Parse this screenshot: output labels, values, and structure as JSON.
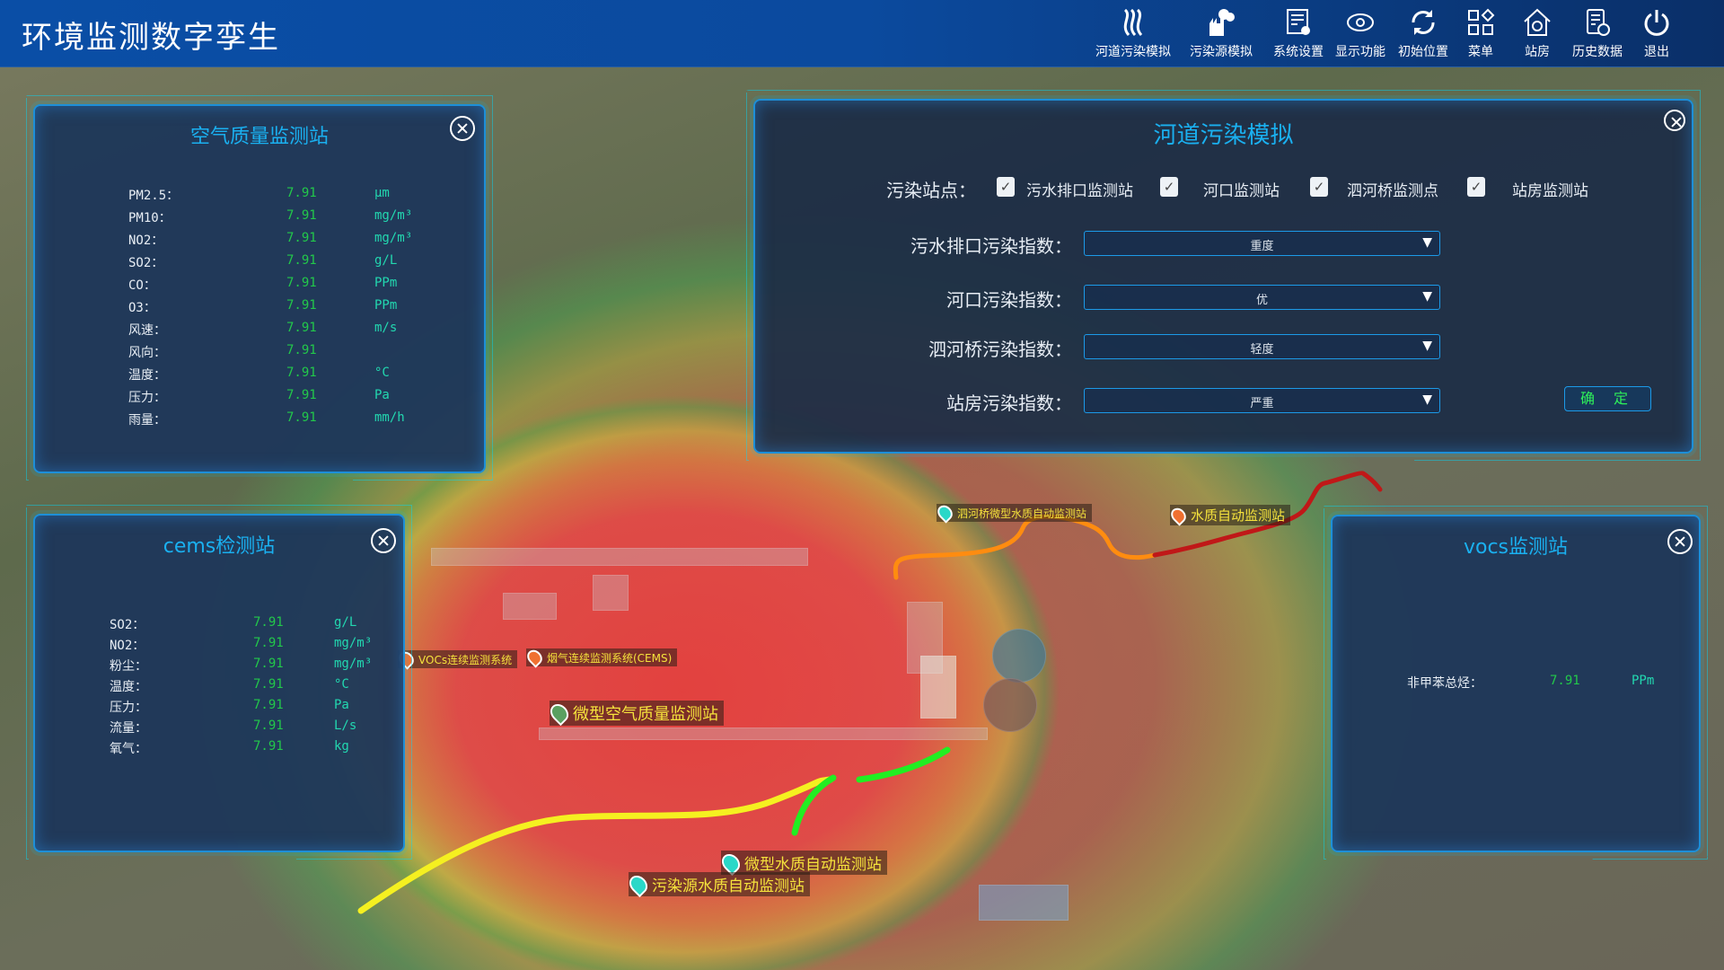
{
  "app": {
    "title": "环境监测数字孪生"
  },
  "toolbar": [
    {
      "label": "河道污染模拟",
      "icon": "river-icon"
    },
    {
      "label": "污染源模拟",
      "icon": "factory-icon"
    },
    {
      "label": "系统设置",
      "icon": "settings-document-icon"
    },
    {
      "label": "显示功能",
      "icon": "eye-icon"
    },
    {
      "label": "初始位置",
      "icon": "refresh-icon"
    },
    {
      "label": "菜单",
      "icon": "grid-menu-icon"
    },
    {
      "label": "站房",
      "icon": "house-icon"
    },
    {
      "label": "历史数据",
      "icon": "history-document-icon"
    },
    {
      "label": "退出",
      "icon": "power-icon"
    }
  ],
  "air_panel": {
    "title": "空气质量监测站",
    "rows": [
      {
        "label": "PM2.5：",
        "value": "7.91",
        "unit": "μm"
      },
      {
        "label": "PM10：",
        "value": "7.91",
        "unit": "mg/m³"
      },
      {
        "label": "NO2：",
        "value": "7.91",
        "unit": "mg/m³"
      },
      {
        "label": "SO2：",
        "value": "7.91",
        "unit": "g/L"
      },
      {
        "label": "CO：",
        "value": "7.91",
        "unit": "PPm"
      },
      {
        "label": "O3：",
        "value": "7.91",
        "unit": "PPm"
      },
      {
        "label": "风速：",
        "value": "7.91",
        "unit": "m/s"
      },
      {
        "label": "风向：",
        "value": "7.91",
        "unit": ""
      },
      {
        "label": "温度：",
        "value": "7.91",
        "unit": "°C"
      },
      {
        "label": "压力：",
        "value": "7.91",
        "unit": "Pa"
      },
      {
        "label": "雨量：",
        "value": "7.91",
        "unit": "mm/h"
      }
    ]
  },
  "cems_panel": {
    "title": "cems检测站",
    "rows": [
      {
        "label": "SO2：",
        "value": "7.91",
        "unit": "g/L"
      },
      {
        "label": "NO2：",
        "value": "7.91",
        "unit": "mg/m³"
      },
      {
        "label": "粉尘：",
        "value": "7.91",
        "unit": "mg/m³"
      },
      {
        "label": "温度：",
        "value": "7.91",
        "unit": "°C"
      },
      {
        "label": "压力：",
        "value": "7.91",
        "unit": "Pa"
      },
      {
        "label": "流量：",
        "value": "7.91",
        "unit": "L/s"
      },
      {
        "label": "氧气：",
        "value": "7.91",
        "unit": "kg"
      }
    ]
  },
  "vocs_panel": {
    "title": "vocs监测站",
    "rows": [
      {
        "label": "非甲苯总烃：",
        "value": "7.91",
        "unit": "PPm"
      }
    ]
  },
  "river_panel": {
    "title": "河道污染模拟",
    "stations_label": "污染站点：",
    "stations": [
      {
        "label": "污水排口监测站",
        "checked": true
      },
      {
        "label": "河口监测站",
        "checked": true
      },
      {
        "label": "泗河桥监测点",
        "checked": true
      },
      {
        "label": "站房监测站",
        "checked": true
      }
    ],
    "indices": [
      {
        "label": "污水排口污染指数：",
        "value": "重度"
      },
      {
        "label": "河口污染指数：",
        "value": "优"
      },
      {
        "label": "泗河桥污染指数：",
        "value": "轻度"
      },
      {
        "label": "站房污染指数：",
        "value": "严重"
      }
    ],
    "confirm_label": "确 定"
  },
  "map_markers": [
    {
      "label": "泗河桥微型水质自动监测站",
      "color": "#2ad8c8"
    },
    {
      "label": "水质自动监测站",
      "color": "#f07030"
    },
    {
      "label": "VOCs连续监测系统",
      "color": "#f07030"
    },
    {
      "label": "烟气连续监测系统(CEMS)",
      "color": "#f07030"
    },
    {
      "label": "微型空气质量监测站",
      "color": "#5aa060"
    },
    {
      "label": "微型水质自动监测站",
      "color": "#2ad8c8"
    },
    {
      "label": "污染源水质自动监测站",
      "color": "#2ad8c8"
    }
  ],
  "river_colors": {
    "yellow": "#f5f020",
    "green": "#22ee22",
    "orange": "#ff8c10",
    "red": "#c01818"
  }
}
